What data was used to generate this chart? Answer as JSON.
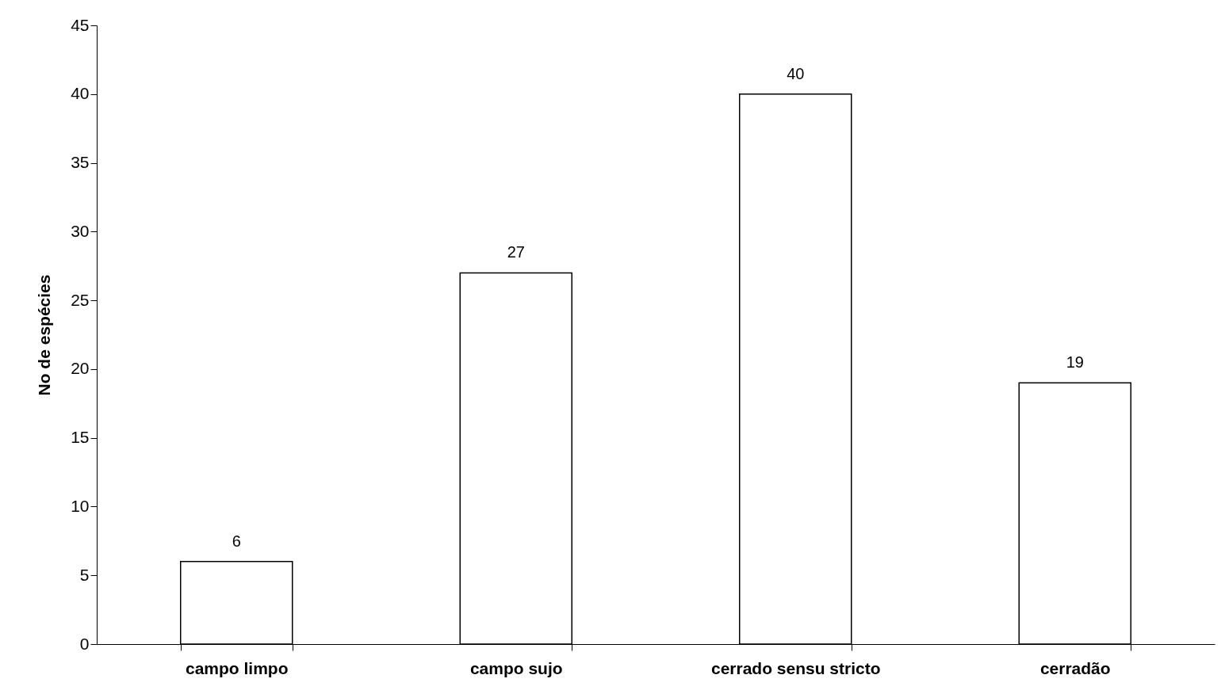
{
  "chart_data": {
    "type": "bar",
    "ylabel": "No de espécies",
    "categories": [
      "campo limpo",
      "campo sujo",
      "cerrado sensu stricto",
      "cerradão"
    ],
    "values": [
      6,
      27,
      40,
      19
    ],
    "color": "#ffffff",
    "ylim": [
      0,
      45
    ],
    "yticks": [
      0,
      5,
      10,
      15,
      20,
      25,
      30,
      35,
      40,
      45
    ],
    "data_labels": true
  }
}
